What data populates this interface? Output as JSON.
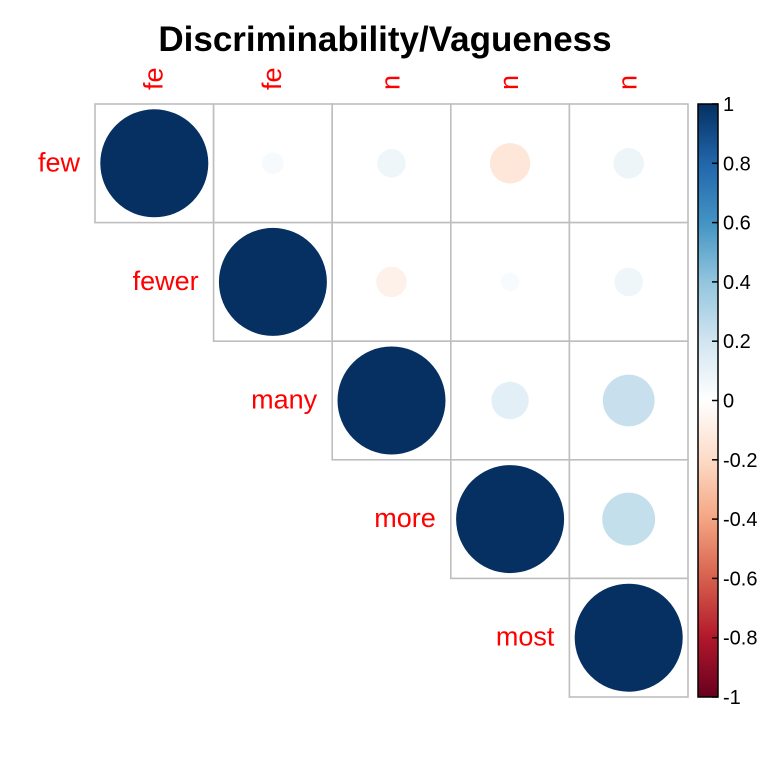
{
  "chart_data": {
    "type": "heatmap",
    "subtype": "upper-triangle-correlation-circles",
    "title": "Discriminability/Vagueness",
    "variables": [
      "few",
      "fewer",
      "many",
      "more",
      "most"
    ],
    "column_labels": [
      "fe",
      "fe",
      "n",
      "n",
      "n"
    ],
    "matrix": [
      [
        1.0,
        0.04,
        0.07,
        -0.14,
        0.08
      ],
      [
        null,
        1.0,
        -0.08,
        0.03,
        0.07
      ],
      [
        null,
        null,
        1.0,
        0.12,
        0.23
      ],
      [
        null,
        null,
        null,
        1.0,
        0.24
      ],
      [
        null,
        null,
        null,
        null,
        1.0
      ]
    ],
    "colorbar": {
      "min": -1,
      "max": 1,
      "ticks": [
        "1",
        "0.8",
        "0.6",
        "0.4",
        "0.2",
        "0",
        "-0.2",
        "-0.4",
        "-0.6",
        "-0.8",
        "-1"
      ],
      "colors": [
        "#67001F",
        "#B2182B",
        "#D6604D",
        "#F4A582",
        "#FDDBC7",
        "#FFFFFF",
        "#D1E5F0",
        "#92C5DE",
        "#4393C3",
        "#2166AC",
        "#053061"
      ]
    },
    "label_color": "#FF0000",
    "grid": true,
    "legend_position": "right"
  }
}
